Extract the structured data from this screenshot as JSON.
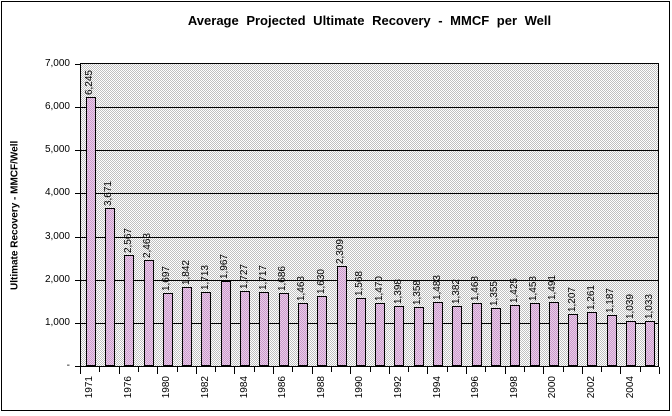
{
  "chart": {
    "background": "#ffffff",
    "frame_border_color": "#000000"
  },
  "chart_data": {
    "type": "bar",
    "title": "Average Projected Ultimate Recovery - MMCF per Well",
    "xlabel": "",
    "ylabel": "Ultimate Recovery - MMCF/Well",
    "ylim": [
      0,
      7000
    ],
    "grid": "horizontal lines every 1000, black",
    "legend": "none",
    "plot_bg_color": "#c0c0c0",
    "bar_fill_color": "#cc99cc",
    "bar_border_color": "#000000",
    "n_bars": 30,
    "values": [
      6245,
      3671,
      2567,
      2463,
      1697,
      1842,
      1713,
      1967,
      1727,
      1717,
      1686,
      1463,
      1630,
      2309,
      1568,
      1470,
      1398,
      1358,
      1483,
      1382,
      1468,
      1355,
      1425,
      1453,
      1491,
      1207,
      1261,
      1187,
      1039,
      1033
    ],
    "value_labels": [
      "6,245",
      "3,671",
      "2,567",
      "2,463",
      "1,697",
      "1,842",
      "1,713",
      "1,967",
      "1,727",
      "1,717",
      "1,686",
      "1,463",
      "1,630",
      "2,309",
      "1,568",
      "1,470",
      "1,398",
      "1,358",
      "1,483",
      "1,382",
      "1,468",
      "1,355",
      "1,425",
      "1,453",
      "1,491",
      "1,207",
      "1,261",
      "1,187",
      "1,039",
      "1,033"
    ],
    "x_tick_labels": [
      "1971",
      "1976",
      "1980",
      "1982",
      "1984",
      "1986",
      "1988",
      "1990",
      "1992",
      "1994",
      "1996",
      "1998",
      "2000",
      "2002",
      "2004"
    ],
    "x_label_every": 2,
    "y_tick_values": [
      0,
      1000,
      2000,
      3000,
      4000,
      5000,
      6000,
      7000
    ],
    "y_tick_labels": [
      "-",
      "1,000",
      "2,000",
      "3,000",
      "4,000",
      "5,000",
      "6,000",
      "7,000"
    ]
  }
}
